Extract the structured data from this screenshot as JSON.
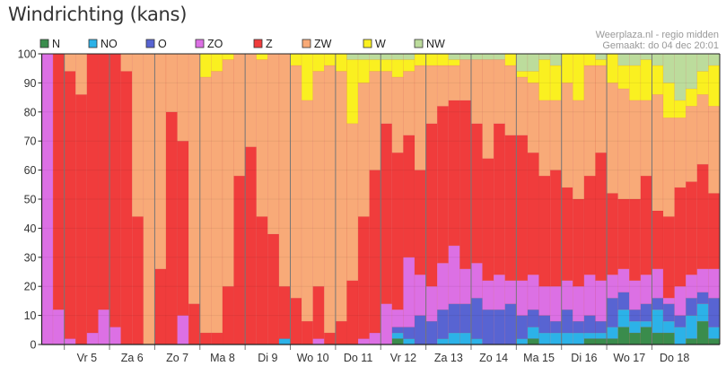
{
  "chart_data": {
    "type": "bar",
    "stacked": true,
    "title": "Windrichting (kans)",
    "source": "Weerplaza.nl - regio midden",
    "made": "Gemaakt: do 04 dec 20:01",
    "xlabel": "",
    "ylabel": "",
    "ylim": [
      0,
      100
    ],
    "yticks": [
      0,
      10,
      20,
      30,
      40,
      50,
      60,
      70,
      80,
      90,
      100
    ],
    "legend_position": "top-left",
    "days": [
      "Vr 5",
      "Za 6",
      "Zo 7",
      "Ma 8",
      "Di 9",
      "Wo 10",
      "Do 11",
      "Vr 12",
      "Za 13",
      "Zo 14",
      "Ma 15",
      "Di 16",
      "Wo 17",
      "Do 18"
    ],
    "steps_per_day": 4,
    "leading_steps": 2,
    "series": [
      {
        "name": "N",
        "color": "#3a8c4c"
      },
      {
        "name": "NO",
        "color": "#2cb2e8"
      },
      {
        "name": "O",
        "color": "#5864d2"
      },
      {
        "name": "ZO",
        "color": "#dc70e4"
      },
      {
        "name": "Z",
        "color": "#f03c3c"
      },
      {
        "name": "ZW",
        "color": "#f8aa78"
      },
      {
        "name": "W",
        "color": "#faf020"
      },
      {
        "name": "NW",
        "color": "#bcdc9c"
      }
    ],
    "values_note": "each row = one time step, percentages per series in series order",
    "values": [
      [
        0,
        0,
        0,
        100,
        0,
        0,
        0,
        0
      ],
      [
        0,
        0,
        0,
        12,
        88,
        0,
        0,
        0
      ],
      [
        0,
        0,
        0,
        2,
        92,
        6,
        0,
        0
      ],
      [
        0,
        0,
        0,
        0,
        86,
        14,
        0,
        0
      ],
      [
        0,
        0,
        0,
        4,
        96,
        0,
        0,
        0
      ],
      [
        0,
        0,
        0,
        12,
        88,
        0,
        0,
        0
      ],
      [
        0,
        0,
        0,
        6,
        94,
        0,
        0,
        0
      ],
      [
        0,
        0,
        0,
        0,
        94,
        6,
        0,
        0
      ],
      [
        0,
        0,
        0,
        0,
        44,
        56,
        0,
        0
      ],
      [
        0,
        0,
        0,
        0,
        0,
        100,
        0,
        0
      ],
      [
        0,
        0,
        0,
        0,
        26,
        74,
        0,
        0
      ],
      [
        0,
        0,
        0,
        0,
        80,
        20,
        0,
        0
      ],
      [
        0,
        0,
        0,
        10,
        60,
        30,
        0,
        0
      ],
      [
        0,
        0,
        0,
        0,
        14,
        86,
        0,
        0
      ],
      [
        0,
        0,
        0,
        0,
        4,
        88,
        8,
        0
      ],
      [
        0,
        0,
        0,
        0,
        4,
        90,
        6,
        0
      ],
      [
        0,
        0,
        0,
        0,
        20,
        78,
        2,
        0
      ],
      [
        0,
        0,
        0,
        0,
        58,
        42,
        0,
        0
      ],
      [
        0,
        0,
        0,
        0,
        68,
        32,
        0,
        0
      ],
      [
        0,
        0,
        0,
        0,
        44,
        54,
        2,
        0
      ],
      [
        0,
        0,
        0,
        0,
        38,
        62,
        0,
        0
      ],
      [
        0,
        2,
        0,
        0,
        18,
        80,
        0,
        0
      ],
      [
        0,
        0,
        0,
        0,
        16,
        80,
        4,
        0
      ],
      [
        0,
        0,
        0,
        0,
        8,
        76,
        16,
        0
      ],
      [
        0,
        0,
        0,
        2,
        18,
        74,
        6,
        0
      ],
      [
        0,
        0,
        0,
        0,
        4,
        92,
        4,
        0
      ],
      [
        0,
        0,
        0,
        0,
        8,
        86,
        6,
        0
      ],
      [
        0,
        0,
        0,
        0,
        22,
        54,
        22,
        2
      ],
      [
        0,
        0,
        0,
        2,
        42,
        46,
        8,
        2
      ],
      [
        0,
        0,
        0,
        4,
        56,
        34,
        4,
        2
      ],
      [
        0,
        0,
        0,
        14,
        62,
        18,
        4,
        2
      ],
      [
        2,
        2,
        2,
        6,
        54,
        26,
        6,
        2
      ],
      [
        0,
        2,
        4,
        24,
        42,
        22,
        4,
        2
      ],
      [
        0,
        0,
        10,
        14,
        36,
        36,
        4,
        0
      ],
      [
        0,
        0,
        8,
        12,
        56,
        20,
        4,
        0
      ],
      [
        0,
        2,
        10,
        16,
        54,
        14,
        4,
        0
      ],
      [
        0,
        4,
        10,
        20,
        50,
        12,
        2,
        2
      ],
      [
        0,
        4,
        10,
        12,
        58,
        14,
        0,
        2
      ],
      [
        0,
        2,
        14,
        12,
        48,
        22,
        0,
        2
      ],
      [
        0,
        0,
        12,
        10,
        42,
        34,
        0,
        2
      ],
      [
        0,
        0,
        12,
        12,
        52,
        22,
        0,
        2
      ],
      [
        0,
        0,
        14,
        8,
        50,
        24,
        4,
        0
      ],
      [
        0,
        2,
        8,
        12,
        50,
        20,
        2,
        6
      ],
      [
        2,
        4,
        6,
        12,
        42,
        24,
        4,
        6
      ],
      [
        0,
        4,
        6,
        10,
        38,
        26,
        14,
        2
      ],
      [
        0,
        4,
        4,
        12,
        40,
        24,
        12,
        4
      ],
      [
        0,
        4,
        8,
        10,
        32,
        36,
        10,
        0
      ],
      [
        0,
        4,
        4,
        12,
        30,
        34,
        16,
        0
      ],
      [
        2,
        2,
        6,
        14,
        34,
        38,
        4,
        0
      ],
      [
        2,
        2,
        4,
        14,
        44,
        30,
        2,
        2
      ],
      [
        2,
        4,
        10,
        8,
        28,
        38,
        10,
        0
      ],
      [
        6,
        6,
        6,
        8,
        24,
        38,
        8,
        4
      ],
      [
        4,
        4,
        4,
        10,
        28,
        34,
        12,
        4
      ],
      [
        6,
        2,
        6,
        10,
        34,
        26,
        14,
        2
      ],
      [
        4,
        8,
        4,
        10,
        20,
        40,
        10,
        4
      ],
      [
        4,
        4,
        6,
        2,
        28,
        34,
        12,
        10
      ],
      [
        0,
        6,
        4,
        10,
        34,
        24,
        6,
        16
      ],
      [
        2,
        8,
        6,
        8,
        32,
        26,
        6,
        12
      ],
      [
        8,
        6,
        4,
        8,
        36,
        24,
        8,
        6
      ],
      [
        2,
        4,
        10,
        10,
        26,
        30,
        14,
        4
      ]
    ]
  }
}
